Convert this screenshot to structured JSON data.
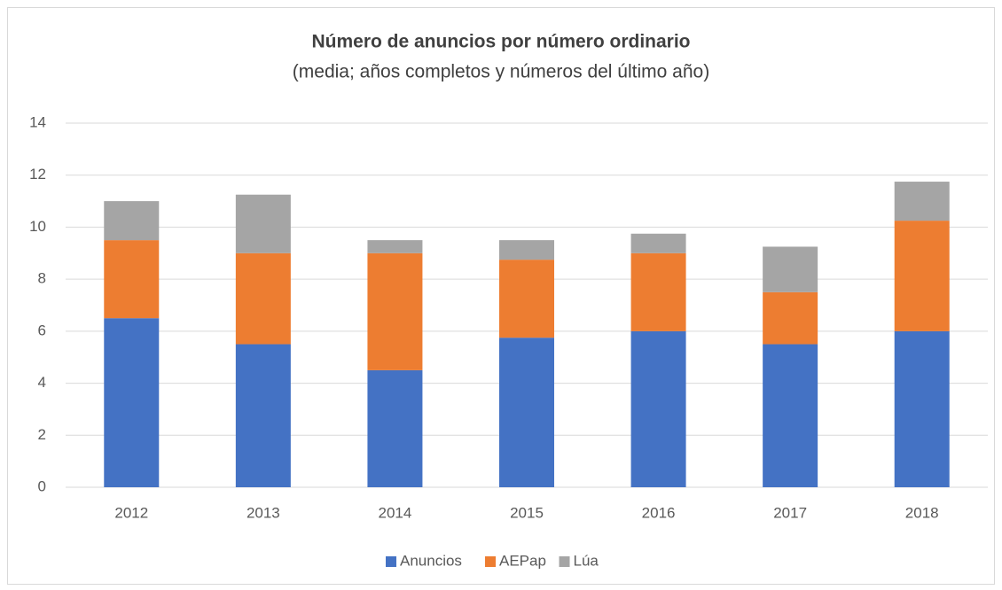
{
  "chart_data": {
    "type": "stacked_bar",
    "title": "Número de anuncios por número ordinario",
    "subtitle": "(media; años completos y números del último año)",
    "categories": [
      "2012",
      "2013",
      "2014",
      "2015",
      "2016",
      "2017",
      "2018"
    ],
    "series": [
      {
        "name": "Anuncios",
        "color": "#4472c4",
        "values": [
          6.5,
          5.5,
          4.5,
          5.75,
          6,
          5.5,
          6
        ]
      },
      {
        "name": "AEPap",
        "color": "#ed7d31",
        "values": [
          3,
          3.5,
          4.5,
          3,
          3,
          2,
          4.25
        ]
      },
      {
        "name": "Lúa",
        "color": "#a5a5a5",
        "values": [
          1.5,
          2.25,
          0.5,
          0.75,
          0.75,
          1.75,
          1.5
        ]
      }
    ],
    "ylim": [
      0,
      14
    ],
    "yticks": [
      0,
      2,
      4,
      6,
      8,
      10,
      12,
      14
    ],
    "grid": true,
    "legend": "bottom"
  }
}
